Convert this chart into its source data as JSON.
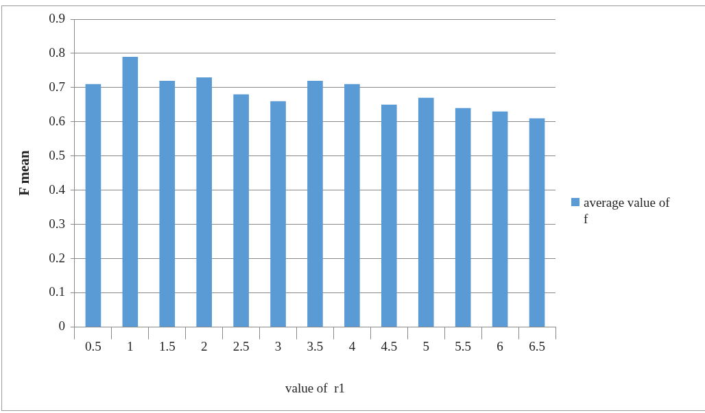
{
  "chart_data": {
    "type": "bar",
    "xlabel": "value of  r1",
    "ylabel": "F mean",
    "categories": [
      "0.5",
      "1",
      "1.5",
      "2",
      "2.5",
      "3",
      "3.5",
      "4",
      "4.5",
      "5",
      "5.5",
      "6",
      "6.5"
    ],
    "series": [
      {
        "name": "average value of f",
        "color": "#5b9bd5",
        "values": [
          0.71,
          0.79,
          0.72,
          0.73,
          0.68,
          0.66,
          0.72,
          0.71,
          0.65,
          0.67,
          0.64,
          0.63,
          0.61
        ]
      }
    ],
    "ylim": [
      0,
      0.9
    ],
    "yticks": [
      0,
      0.1,
      0.2,
      0.3,
      0.4,
      0.5,
      0.6,
      0.7,
      0.8,
      0.9
    ],
    "grid": "y",
    "legend": "right"
  }
}
